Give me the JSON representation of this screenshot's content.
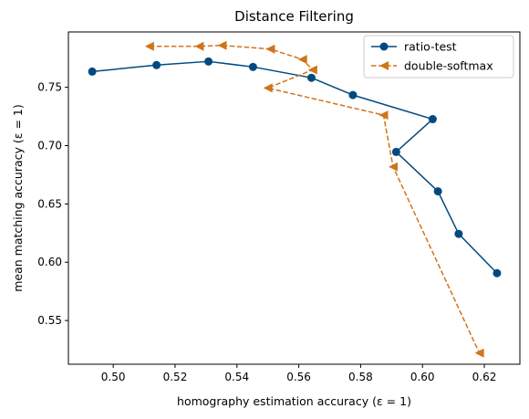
{
  "chart_data": {
    "type": "line",
    "title": "Distance Filtering",
    "xlabel": "homography estimation accuracy (ε = 1)",
    "ylabel": "mean matching accuracy (ε = 1)",
    "xlim": [
      0.4855,
      0.6315
    ],
    "ylim": [
      0.5125,
      0.7975
    ],
    "xticks": [
      0.5,
      0.52,
      0.54,
      0.56,
      0.58,
      0.6,
      0.62
    ],
    "xtick_labels": [
      "0.50",
      "0.52",
      "0.54",
      "0.56",
      "0.58",
      "0.60",
      "0.62"
    ],
    "yticks": [
      0.55,
      0.6,
      0.65,
      0.7,
      0.75
    ],
    "ytick_labels": [
      "0.55",
      "0.60",
      "0.65",
      "0.70",
      "0.75"
    ],
    "grid": false,
    "legend_position": "top-right",
    "series": [
      {
        "name": "ratio-test",
        "color": "#004a7f",
        "line_style": "solid",
        "marker": "circle",
        "x": [
          0.4932,
          0.514,
          0.5308,
          0.5452,
          0.5641,
          0.5775,
          0.6033,
          0.5915,
          0.605,
          0.6117,
          0.6241
        ],
        "y": [
          0.7635,
          0.7691,
          0.7722,
          0.7675,
          0.7582,
          0.7434,
          0.7227,
          0.6946,
          0.6608,
          0.6243,
          0.5906
        ]
      },
      {
        "name": "double-softmax",
        "color": "#d1741a",
        "line_style": "dashed",
        "marker": "triangle-left",
        "x": [
          0.5117,
          0.5278,
          0.5352,
          0.5508,
          0.5612,
          0.5645,
          0.55,
          0.5874,
          0.5905,
          0.6184
        ],
        "y": [
          0.7852,
          0.7852,
          0.786,
          0.7828,
          0.7739,
          0.765,
          0.7494,
          0.7262,
          0.6818,
          0.5221
        ]
      }
    ]
  }
}
